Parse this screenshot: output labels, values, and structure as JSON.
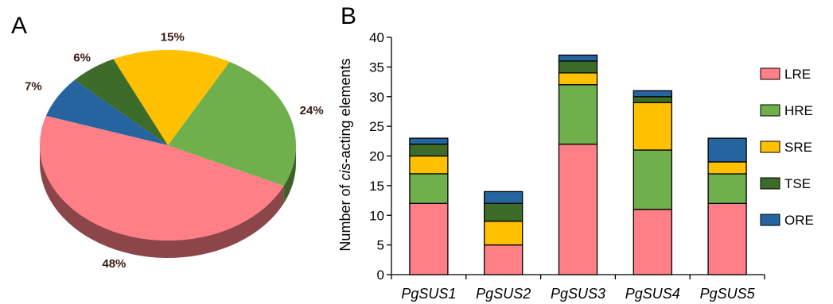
{
  "panels": {
    "a_label": "A",
    "b_label": "B"
  },
  "colors": {
    "LRE": "#ff7f86",
    "HRE": "#70b04c",
    "SRE": "#ffc000",
    "TSE": "#3d6b2a",
    "ORE": "#2664a0"
  },
  "chart_data": [
    {
      "type": "pie",
      "title": "",
      "slices": [
        {
          "name": "LRE",
          "value": 48,
          "label": "48%"
        },
        {
          "name": "HRE",
          "value": 24,
          "label": "24%"
        },
        {
          "name": "SRE",
          "value": 15,
          "label": "15%"
        },
        {
          "name": "TSE",
          "value": 6,
          "label": "6%"
        },
        {
          "name": "ORE",
          "value": 7,
          "label": "7%"
        }
      ],
      "style": "3d-tilted"
    },
    {
      "type": "bar",
      "stacked": true,
      "title": "",
      "categories": [
        "PgSUS1",
        "PgSUS2",
        "PgSUS3",
        "PgSUS4",
        "PgSUS5"
      ],
      "ylabel_prefix": "Number of ",
      "ylabel_italic": "cis",
      "ylabel_suffix": "-acting elements",
      "ylim": [
        0,
        40
      ],
      "yticks": [
        0,
        5,
        10,
        15,
        20,
        25,
        30,
        35,
        40
      ],
      "grid": false,
      "legend_position": "right",
      "series": [
        {
          "name": "LRE",
          "values": [
            12,
            5,
            22,
            11,
            12
          ]
        },
        {
          "name": "HRE",
          "values": [
            5,
            0,
            10,
            10,
            5
          ]
        },
        {
          "name": "SRE",
          "values": [
            3,
            4,
            2,
            8,
            2
          ]
        },
        {
          "name": "TSE",
          "values": [
            2,
            3,
            2,
            1,
            0
          ]
        },
        {
          "name": "ORE",
          "values": [
            1,
            2,
            1,
            1,
            4
          ]
        }
      ]
    }
  ]
}
